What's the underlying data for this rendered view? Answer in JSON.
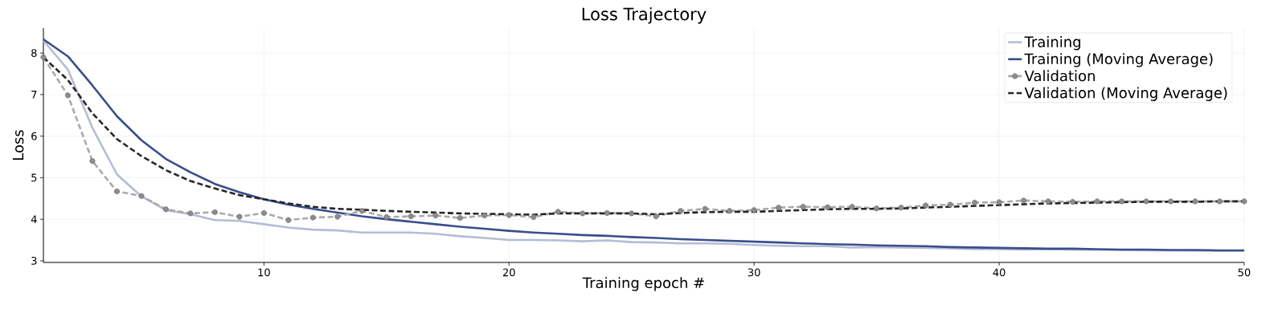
{
  "chart_data": {
    "type": "line",
    "title": "Loss Trajectory",
    "xlabel": "Training epoch #",
    "ylabel": "Loss",
    "x": [
      1,
      2,
      3,
      4,
      5,
      6,
      7,
      8,
      9,
      10,
      11,
      12,
      13,
      14,
      15,
      16,
      17,
      18,
      19,
      20,
      21,
      22,
      23,
      24,
      25,
      26,
      27,
      28,
      29,
      30,
      31,
      32,
      33,
      34,
      35,
      36,
      37,
      38,
      39,
      40,
      41,
      42,
      43,
      44,
      45,
      46,
      47,
      48,
      49,
      50
    ],
    "series": [
      {
        "name": "Training",
        "color": "#b4bcd6",
        "line_style": "solid",
        "values": [
          8.3,
          7.6,
          6.2,
          5.08,
          4.55,
          4.22,
          4.12,
          3.98,
          3.96,
          3.88,
          3.8,
          3.75,
          3.73,
          3.68,
          3.68,
          3.68,
          3.65,
          3.59,
          3.55,
          3.5,
          3.5,
          3.49,
          3.47,
          3.49,
          3.45,
          3.44,
          3.42,
          3.42,
          3.41,
          3.38,
          3.36,
          3.35,
          3.35,
          3.32,
          3.33,
          3.32,
          3.31,
          3.3,
          3.28,
          3.28,
          3.27,
          3.28,
          3.27,
          null,
          3.26,
          3.25,
          null,
          null,
          3.24,
          3.24
        ]
      },
      {
        "name": "Training (Moving Average)",
        "color": "#3a4e8c",
        "line_style": "solid",
        "values": [
          8.33,
          7.92,
          7.22,
          6.48,
          5.9,
          5.45,
          5.13,
          4.85,
          4.65,
          4.48,
          4.35,
          4.25,
          4.16,
          4.07,
          4.0,
          3.94,
          3.88,
          3.82,
          3.77,
          3.72,
          3.68,
          3.65,
          3.62,
          3.6,
          3.57,
          3.55,
          3.52,
          3.5,
          3.48,
          3.46,
          3.44,
          3.42,
          3.4,
          3.39,
          3.37,
          3.36,
          3.35,
          3.33,
          3.32,
          3.31,
          3.3,
          3.29,
          3.29,
          3.28,
          3.27,
          3.27,
          3.26,
          3.26,
          3.25,
          3.25
        ]
      },
      {
        "name": "Validation",
        "color": "#aaaaaa",
        "line_style": "dashed",
        "marker": "circle",
        "values": [
          7.9,
          6.98,
          5.4,
          4.67,
          4.56,
          4.24,
          4.14,
          4.17,
          4.06,
          4.15,
          3.98,
          4.04,
          4.06,
          4.2,
          4.05,
          4.07,
          4.09,
          4.03,
          4.09,
          4.1,
          4.05,
          4.18,
          4.14,
          4.15,
          4.14,
          4.07,
          4.2,
          4.25,
          4.2,
          4.22,
          4.28,
          4.3,
          4.29,
          4.3,
          4.26,
          4.28,
          4.33,
          4.35,
          4.4,
          4.41,
          4.45,
          4.43,
          4.42,
          4.43,
          4.43,
          4.43,
          4.43,
          4.43,
          4.43,
          4.43
        ]
      },
      {
        "name": "Validation (Moving Average)",
        "color": "#262626",
        "line_style": "dashed",
        "values": [
          7.9,
          7.35,
          6.55,
          5.93,
          5.52,
          5.18,
          4.92,
          4.74,
          4.58,
          4.48,
          4.38,
          4.3,
          4.25,
          4.23,
          4.2,
          4.18,
          4.16,
          4.14,
          4.13,
          4.12,
          4.11,
          4.14,
          4.14,
          4.14,
          4.14,
          4.12,
          4.15,
          4.17,
          4.18,
          4.18,
          4.2,
          4.22,
          4.24,
          4.25,
          4.25,
          4.26,
          4.28,
          4.3,
          4.32,
          4.34,
          4.36,
          4.38,
          4.39,
          4.4,
          4.41,
          4.42,
          4.42,
          4.42,
          4.43,
          4.43
        ]
      }
    ],
    "xlim": [
      1,
      50
    ],
    "ylim": [
      2.96,
      8.6
    ],
    "xticks": [
      10,
      20,
      30,
      40,
      50
    ],
    "yticks": [
      3,
      4,
      5,
      6,
      7,
      8
    ],
    "grid": true,
    "legend": "top right"
  }
}
